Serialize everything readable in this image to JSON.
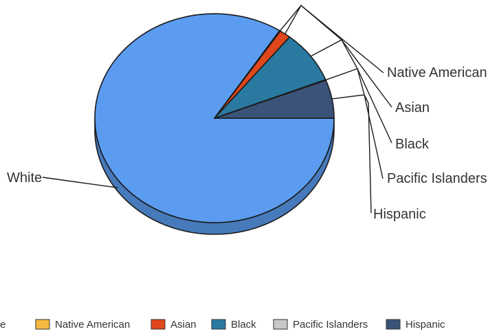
{
  "chart_data": {
    "type": "pie",
    "title": "",
    "categories": [
      "White",
      "Native American",
      "Asian",
      "Black",
      "Pacific Islanders",
      "Hispanic"
    ],
    "values": [
      82.5,
      0.1,
      1.5,
      8.0,
      0.1,
      5.8
    ],
    "unit": "%",
    "style": "3d-tilted",
    "legend": {
      "position": "bottom"
    },
    "colors": [
      "#5b9cf0",
      "#f5b942",
      "#e0471c",
      "#2a79a0",
      "#c8c8c8",
      "#3b5378"
    ]
  }
}
